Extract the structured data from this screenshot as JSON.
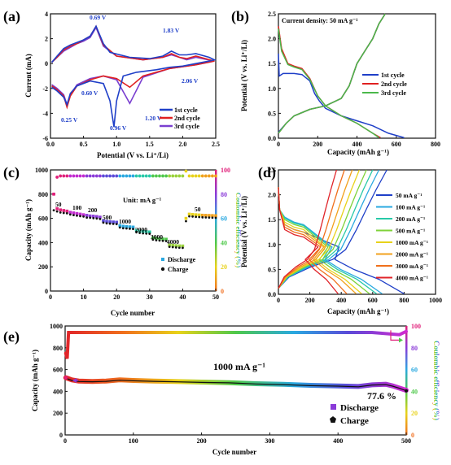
{
  "chart_data": [
    {
      "panel": "(a)",
      "type": "line",
      "xlabel": "Potential (V vs. Li⁺/Li)",
      "ylabel": "Current (mA)",
      "xlim": [
        0,
        2.5
      ],
      "ylim": [
        -6,
        4
      ],
      "xticks": [
        "0.0",
        "0.5",
        "1.0",
        "1.5",
        "2.0",
        "2.5"
      ],
      "yticks": [
        "-6",
        "-4",
        "-2",
        "0",
        "2",
        "4"
      ],
      "legend": "bottom-right",
      "annotations": [
        "0.69 V",
        "1.83 V",
        "0.60 V",
        "0.25 V",
        "0.96 V",
        "1.20 V",
        "2.06 V"
      ],
      "series": [
        {
          "name": "1st cycle",
          "color": "#1f3fc8",
          "x": [
            0.02,
            0.1,
            0.2,
            0.25,
            0.3,
            0.4,
            0.6,
            0.8,
            0.9,
            0.96,
            1.0,
            1.1,
            1.3,
            1.6,
            1.8,
            2.0,
            2.2,
            2.4,
            2.48,
            2.4,
            2.2,
            2.06,
            1.95,
            1.83,
            1.7,
            1.5,
            1.2,
            0.9,
            0.8,
            0.69,
            0.6,
            0.5,
            0.4,
            0.3,
            0.2,
            0.1,
            0.02
          ],
          "y": [
            -1.9,
            -2.2,
            -2.7,
            -3.3,
            -2.4,
            -1.8,
            -1.4,
            -1.6,
            -3.0,
            -5.1,
            -3.0,
            -1.0,
            -0.7,
            -0.5,
            -0.3,
            -0.2,
            0.0,
            0.2,
            0.3,
            0.5,
            0.8,
            0.7,
            0.7,
            1.0,
            0.6,
            0.4,
            0.5,
            0.9,
            1.6,
            3.0,
            2.2,
            1.9,
            1.7,
            1.5,
            1.2,
            0.6,
            0.1
          ]
        },
        {
          "name": "2nd cycle",
          "color": "#e02020",
          "x": [
            0.02,
            0.1,
            0.2,
            0.25,
            0.3,
            0.4,
            0.6,
            0.8,
            1.0,
            1.2,
            1.4,
            1.8,
            2.2,
            2.48,
            2.2,
            2.06,
            1.95,
            1.83,
            1.7,
            1.4,
            1.0,
            0.8,
            0.69,
            0.6,
            0.5,
            0.4,
            0.3,
            0.2,
            0.1,
            0.02
          ],
          "y": [
            -1.8,
            -2.1,
            -2.6,
            -3.5,
            -2.6,
            -1.8,
            -1.3,
            -1.0,
            -1.2,
            -1.9,
            -1.0,
            -0.4,
            -0.1,
            0.2,
            0.6,
            0.4,
            0.5,
            0.8,
            0.5,
            0.3,
            0.6,
            1.5,
            3.0,
            2.2,
            1.9,
            1.6,
            1.4,
            1.1,
            0.5,
            0.1
          ]
        },
        {
          "name": "3rd cycle",
          "color": "#7a3fd0",
          "x": [
            0.02,
            0.1,
            0.2,
            0.25,
            0.3,
            0.4,
            0.6,
            0.8,
            1.0,
            1.2,
            1.4,
            1.8,
            2.2,
            2.48,
            2.2,
            2.06,
            1.95,
            1.83,
            1.7,
            1.4,
            1.0,
            0.8,
            0.69,
            0.6,
            0.5,
            0.4,
            0.3,
            0.2,
            0.1,
            0.02
          ],
          "y": [
            -1.7,
            -2.0,
            -2.5,
            -3.3,
            -2.5,
            -1.7,
            -1.2,
            -1.0,
            -1.3,
            -3.2,
            -1.1,
            -0.4,
            -0.1,
            0.2,
            0.5,
            0.3,
            0.5,
            0.7,
            0.5,
            0.3,
            0.6,
            1.4,
            2.9,
            2.1,
            1.8,
            1.6,
            1.3,
            1.0,
            0.5,
            0.1
          ]
        }
      ]
    },
    {
      "panel": "(b)",
      "type": "line",
      "title": "Current density: 50 mA g⁻¹",
      "xlabel": "Capacity (mAh g⁻¹)",
      "ylabel": "Potential (V vs. Li⁺/Li)",
      "xlim": [
        0,
        1000
      ],
      "ylim": [
        0,
        2.5
      ],
      "xticks": [
        "0",
        "200",
        "400",
        "600",
        "800"
      ],
      "yticks": [
        "0.0",
        "0.5",
        "1.0",
        "1.5",
        "2.0",
        "2.5"
      ],
      "legend": "right",
      "series": [
        {
          "name": "1st cycle",
          "color": "#1f3fc8",
          "discharge_x": [
            0,
            5,
            30,
            100,
            150,
            200,
            230,
            260,
            300,
            400,
            500,
            600,
            700,
            800
          ],
          "discharge_y": [
            1.7,
            1.25,
            1.3,
            1.3,
            1.28,
            1.15,
            0.9,
            0.75,
            0.6,
            0.45,
            0.35,
            0.25,
            0.1,
            0.01
          ],
          "charge_x": [
            0,
            50,
            100,
            200,
            300,
            400,
            450,
            500,
            550,
            600,
            640,
            680
          ],
          "charge_y": [
            0.12,
            0.3,
            0.45,
            0.58,
            0.65,
            0.8,
            1.05,
            1.5,
            1.75,
            2.0,
            2.3,
            2.5
          ]
        },
        {
          "name": "2nd cycle",
          "color": "#e02020",
          "discharge_x": [
            0,
            20,
            60,
            100,
            150,
            200,
            250,
            300,
            400,
            500,
            600,
            650
          ],
          "discharge_y": [
            2.25,
            1.8,
            1.5,
            1.45,
            1.4,
            1.2,
            0.85,
            0.65,
            0.45,
            0.3,
            0.1,
            0.01
          ],
          "charge_x": [
            0,
            50,
            100,
            200,
            300,
            400,
            450,
            500,
            550,
            600,
            640,
            680
          ],
          "charge_y": [
            0.1,
            0.3,
            0.45,
            0.58,
            0.65,
            0.8,
            1.05,
            1.5,
            1.75,
            2.0,
            2.3,
            2.5
          ]
        },
        {
          "name": "3rd cycle",
          "color": "#4ab84a",
          "discharge_x": [
            0,
            20,
            60,
            100,
            150,
            200,
            250,
            300,
            400,
            500,
            600,
            640
          ],
          "discharge_y": [
            2.2,
            1.75,
            1.48,
            1.43,
            1.38,
            1.18,
            0.85,
            0.65,
            0.45,
            0.3,
            0.1,
            0.01
          ],
          "charge_x": [
            0,
            50,
            100,
            200,
            300,
            400,
            450,
            500,
            550,
            600,
            640,
            680
          ],
          "charge_y": [
            0.1,
            0.3,
            0.45,
            0.58,
            0.65,
            0.8,
            1.05,
            1.5,
            1.75,
            2.0,
            2.3,
            2.5
          ]
        }
      ]
    },
    {
      "panel": "(c)",
      "type": "scatter",
      "xlabel": "Cycle number",
      "ylabel": "Capacity (mAh g⁻¹)",
      "y2label": "Coulombic efficiency (%)",
      "unit_label": "Unit: mA g⁻¹",
      "xlim": [
        0,
        50
      ],
      "ylim": [
        0,
        1000
      ],
      "y2lim": [
        0,
        100
      ],
      "xticks": [
        "0",
        "10",
        "20",
        "30",
        "40",
        "50"
      ],
      "yticks": [
        "0",
        "200",
        "400",
        "600",
        "800",
        "1000"
      ],
      "y2ticks": [
        "0",
        "20",
        "40",
        "60",
        "80",
        "100"
      ],
      "rate_labels": [
        "50",
        "100",
        "200",
        "500",
        "1000",
        "2000",
        "3000",
        "4000",
        "50"
      ],
      "legend": [
        "Discharge",
        "Charge"
      ],
      "discharge": [
        800,
        680,
        670,
        665,
        660,
        650,
        645,
        640,
        635,
        630,
        625,
        620,
        618,
        615,
        610,
        580,
        575,
        572,
        570,
        568,
        540,
        535,
        532,
        530,
        528,
        500,
        495,
        492,
        490,
        488,
        440,
        435,
        432,
        430,
        428,
        380,
        378,
        375,
        373,
        372,
        600,
        635,
        632,
        630,
        628,
        626,
        625,
        624,
        623,
        622
      ],
      "charge": [
        680,
        670,
        662,
        658,
        655,
        645,
        640,
        636,
        632,
        628,
        620,
        618,
        615,
        612,
        608,
        578,
        572,
        570,
        568,
        566,
        538,
        532,
        530,
        528,
        526,
        498,
        493,
        490,
        488,
        486,
        438,
        433,
        430,
        428,
        426,
        378,
        376,
        373,
        371,
        370,
        590,
        630,
        628,
        626,
        624,
        622,
        621,
        620,
        619,
        618
      ],
      "efficiency": [
        80,
        94,
        95,
        95,
        95,
        95,
        95,
        95,
        95,
        95,
        95,
        95,
        95,
        95,
        95,
        95,
        95,
        95,
        95,
        95,
        95,
        95,
        95,
        95,
        95,
        95,
        95,
        95,
        95,
        95,
        95,
        95,
        95,
        95,
        95,
        95,
        95,
        95,
        95,
        95,
        99,
        95,
        95,
        95,
        95,
        95,
        95,
        95,
        95,
        95
      ]
    },
    {
      "panel": "(d)",
      "type": "line",
      "xlabel": "Capacity (mAh g⁻¹)",
      "ylabel": "Potential (V vs. Li⁺/Li)",
      "xlim": [
        0,
        1000
      ],
      "ylim": [
        0,
        2.5
      ],
      "xticks": [
        "0",
        "200",
        "400",
        "600",
        "800",
        "1000"
      ],
      "yticks": [
        "0.0",
        "0.5",
        "1.0",
        "1.5",
        "2.0",
        "2.5"
      ],
      "legend": "right",
      "series": [
        {
          "name": "50 mA g⁻¹",
          "color": "#1f3fc8",
          "discharge_end": 800,
          "charge_end": 690,
          "plateau": 1.25
        },
        {
          "name": "100 mA g⁻¹",
          "color": "#29a8e0",
          "discharge_end": 660,
          "charge_end": 640,
          "plateau": 1.4
        },
        {
          "name": "200 mA g⁻¹",
          "color": "#27c9a8",
          "discharge_end": 625,
          "charge_end": 600,
          "plateau": 1.38
        },
        {
          "name": "500 mA g⁻¹",
          "color": "#7fd23a",
          "discharge_end": 580,
          "charge_end": 560,
          "plateau": 1.35
        },
        {
          "name": "1000 mA g⁻¹",
          "color": "#e8d21a",
          "discharge_end": 530,
          "charge_end": 515,
          "plateau": 1.3
        },
        {
          "name": "2000 mA g⁻¹",
          "color": "#f2a01c",
          "discharge_end": 495,
          "charge_end": 470,
          "plateau": 1.25
        },
        {
          "name": "3000 mA g⁻¹",
          "color": "#f0701c",
          "discharge_end": 435,
          "charge_end": 420,
          "plateau": 1.2
        },
        {
          "name": "4000 mA g⁻¹",
          "color": "#e0242a",
          "discharge_end": 380,
          "charge_end": 370,
          "plateau": 1.15
        }
      ]
    },
    {
      "panel": "(e)",
      "type": "scatter",
      "xlabel": "Cycle number",
      "ylabel": "Capacity (mAh g⁻¹)",
      "y2label": "Coulombic efficiency (%)",
      "annotation": "1000 mA g⁻¹",
      "retention": "77.6 %",
      "xlim": [
        0,
        500
      ],
      "ylim": [
        0,
        1000
      ],
      "y2lim": [
        0,
        100
      ],
      "xticks": [
        "0",
        "100",
        "200",
        "300",
        "400",
        "500"
      ],
      "yticks": [
        "0",
        "200",
        "400",
        "600",
        "800",
        "1000"
      ],
      "y2ticks": [
        "0",
        "20",
        "40",
        "60",
        "80",
        "100"
      ],
      "legend": [
        "Discharge",
        "Charge"
      ],
      "x": [
        1,
        10,
        20,
        40,
        60,
        80,
        100,
        130,
        160,
        200,
        240,
        280,
        320,
        360,
        400,
        430,
        450,
        470,
        480,
        490,
        500
      ],
      "discharge": [
        525,
        505,
        495,
        490,
        495,
        505,
        500,
        495,
        490,
        485,
        480,
        470,
        465,
        455,
        450,
        445,
        460,
        465,
        450,
        430,
        410
      ],
      "charge": [
        520,
        500,
        490,
        488,
        492,
        502,
        497,
        492,
        488,
        482,
        478,
        468,
        462,
        452,
        448,
        442,
        458,
        462,
        448,
        428,
        405
      ],
      "efficiency_x": [
        1,
        3,
        5,
        10,
        50,
        100,
        150,
        200,
        250,
        300,
        350,
        400,
        450,
        490,
        500
      ],
      "efficiency": [
        75,
        70,
        94,
        94,
        94,
        94,
        94,
        94,
        94,
        94,
        94,
        94,
        94,
        92,
        95
      ]
    }
  ],
  "panel_labels": [
    "(a)",
    "(b)",
    "(c)",
    "(d)",
    "(e)"
  ],
  "colors": {
    "axis": "#111111",
    "eff_y2": "#e0207a"
  }
}
